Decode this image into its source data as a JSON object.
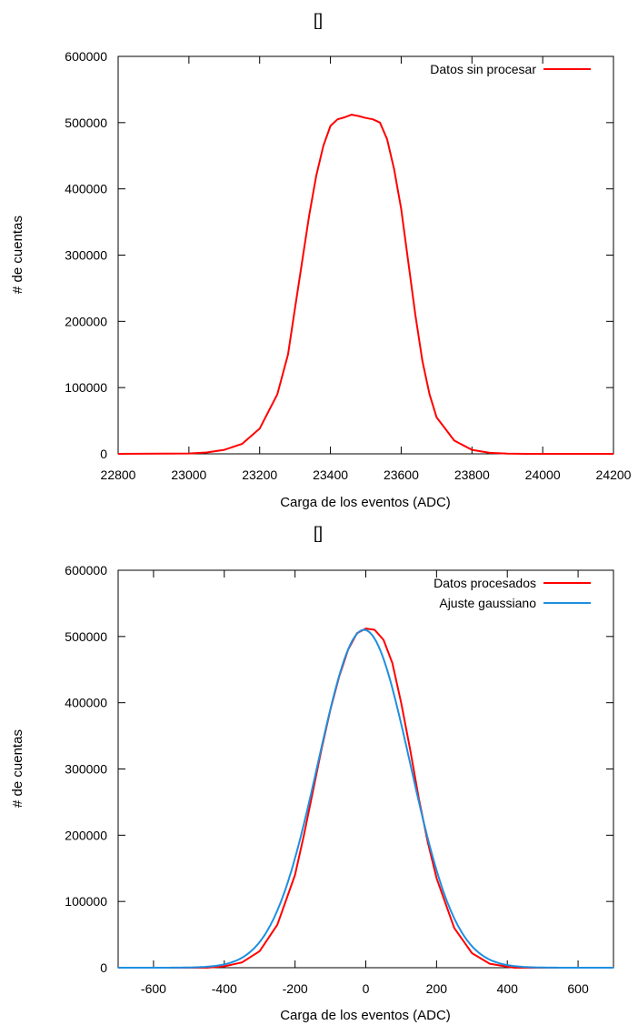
{
  "chart_data": [
    {
      "type": "line",
      "title": "[]",
      "xlabel": "Carga de los eventos (ADC)",
      "ylabel": "# de cuentas",
      "xlim": [
        22800,
        24200
      ],
      "ylim": [
        0,
        600000
      ],
      "xticks": [
        22800,
        23000,
        23200,
        23400,
        23600,
        23800,
        24000,
        24200
      ],
      "yticks": [
        0,
        100000,
        200000,
        300000,
        400000,
        500000,
        600000
      ],
      "grid": false,
      "legend_position": "top-right",
      "series": [
        {
          "name": "Datos sin procesar",
          "color": "#ff0000",
          "x": [
            22800,
            23000,
            23050,
            23100,
            23150,
            23200,
            23250,
            23280,
            23300,
            23320,
            23340,
            23360,
            23380,
            23400,
            23420,
            23440,
            23460,
            23480,
            23500,
            23520,
            23540,
            23560,
            23580,
            23600,
            23620,
            23640,
            23660,
            23680,
            23700,
            23750,
            23800,
            23850,
            23900,
            23950,
            24000,
            24200
          ],
          "y": [
            0,
            500,
            2000,
            6000,
            15000,
            38000,
            90000,
            150000,
            220000,
            290000,
            360000,
            420000,
            465000,
            495000,
            505000,
            508000,
            512000,
            510000,
            507000,
            505000,
            500000,
            475000,
            430000,
            370000,
            290000,
            210000,
            140000,
            90000,
            55000,
            20000,
            6000,
            1500,
            300,
            0,
            0,
            0
          ]
        }
      ]
    },
    {
      "type": "line",
      "title": "[]",
      "xlabel": "Carga de los eventos (ADC)",
      "ylabel": "# de cuentas",
      "xlim": [
        -700,
        700
      ],
      "ylim": [
        0,
        600000
      ],
      "xticks": [
        -600,
        -400,
        -200,
        0,
        200,
        400,
        600
      ],
      "yticks": [
        0,
        100000,
        200000,
        300000,
        400000,
        500000,
        600000
      ],
      "grid": false,
      "legend_position": "top-right",
      "series": [
        {
          "name": "Datos procesados",
          "color": "#ff0000",
          "x": [
            -700,
            -450,
            -400,
            -350,
            -300,
            -250,
            -200,
            -175,
            -150,
            -125,
            -100,
            -75,
            -50,
            -25,
            0,
            25,
            50,
            75,
            100,
            125,
            150,
            175,
            200,
            250,
            300,
            350,
            400,
            420,
            700
          ],
          "y": [
            0,
            0,
            2000,
            8000,
            25000,
            65000,
            140000,
            200000,
            265000,
            330000,
            390000,
            440000,
            480000,
            505000,
            512000,
            510000,
            495000,
            460000,
            400000,
            330000,
            255000,
            190000,
            135000,
            60000,
            22000,
            6000,
            1500,
            0,
            0
          ]
        },
        {
          "name": "Ajuste gaussiano",
          "color": "#1e8fe0",
          "mean": -5,
          "sigma": 130,
          "amplitude": 510000
        }
      ]
    }
  ]
}
